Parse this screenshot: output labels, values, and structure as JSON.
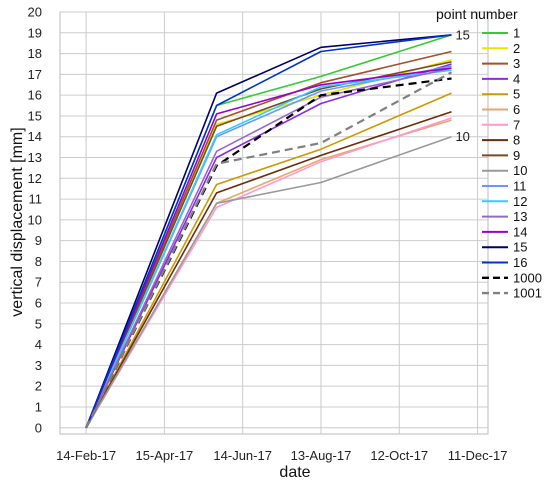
{
  "chart_data": {
    "type": "line",
    "xlabel": "date",
    "ylabel": "vertical displacement [mm]",
    "x_ticks": [
      "14-Feb-17",
      "15-Apr-17",
      "14-Jun-17",
      "13-Aug-17",
      "12-Oct-17",
      "11-Dec-17"
    ],
    "x_tick_values": [
      0,
      60,
      120,
      180,
      240,
      300
    ],
    "xlim": [
      -20,
      308
    ],
    "ylim": [
      -0.3,
      20
    ],
    "y_ticks": [
      0,
      1,
      2,
      3,
      4,
      5,
      6,
      7,
      8,
      9,
      10,
      11,
      12,
      13,
      14,
      15,
      16,
      17,
      18,
      19,
      20
    ],
    "x": [
      0,
      100,
      180,
      280
    ],
    "grid": true,
    "legend": {
      "title": "point number",
      "placement": "right"
    },
    "series": [
      {
        "name": "1",
        "color": "#33cc33",
        "dash": false,
        "values": [
          0,
          15.5,
          16.9,
          18.9
        ]
      },
      {
        "name": "2",
        "color": "#e6e600",
        "dash": false,
        "values": [
          0,
          14.6,
          16.0,
          17.7
        ]
      },
      {
        "name": "3",
        "color": "#a0522d",
        "dash": false,
        "values": [
          0,
          14.8,
          16.6,
          18.1
        ]
      },
      {
        "name": "4",
        "color": "#8a2be2",
        "dash": false,
        "values": [
          0,
          13.0,
          15.6,
          17.5
        ]
      },
      {
        "name": "5",
        "color": "#cc9900",
        "dash": false,
        "values": [
          0,
          11.7,
          13.4,
          16.1
        ]
      },
      {
        "name": "6",
        "color": "#e8a56e",
        "dash": false,
        "values": [
          0,
          10.8,
          12.9,
          14.8
        ]
      },
      {
        "name": "7",
        "color": "#ff99cc",
        "dash": false,
        "values": [
          0,
          10.6,
          12.8,
          14.9
        ]
      },
      {
        "name": "8",
        "color": "#6b2d0f",
        "dash": false,
        "values": [
          0,
          11.3,
          13.1,
          15.2
        ]
      },
      {
        "name": "9",
        "color": "#7a4a20",
        "dash": false,
        "values": [
          0,
          14.5,
          16.3,
          17.6
        ]
      },
      {
        "name": "10",
        "color": "#999999",
        "dash": false,
        "values": [
          0,
          10.8,
          11.8,
          14.0
        ]
      },
      {
        "name": "11",
        "color": "#6699ff",
        "dash": false,
        "values": [
          0,
          14.0,
          16.2,
          17.4
        ]
      },
      {
        "name": "12",
        "color": "#33ccff",
        "dash": false,
        "values": [
          0,
          14.1,
          16.4,
          17.2
        ]
      },
      {
        "name": "13",
        "color": "#9966cc",
        "dash": false,
        "values": [
          0,
          13.3,
          15.9,
          17.3
        ]
      },
      {
        "name": "14",
        "color": "#9900cc",
        "dash": false,
        "values": [
          0,
          15.1,
          16.5,
          17.3
        ]
      },
      {
        "name": "15",
        "color": "#000066",
        "dash": false,
        "values": [
          0,
          16.1,
          18.3,
          18.9
        ]
      },
      {
        "name": "16",
        "color": "#0033cc",
        "dash": false,
        "values": [
          0,
          15.5,
          18.1,
          18.9
        ]
      },
      {
        "name": "1000",
        "color": "#000000",
        "dash": true,
        "values": [
          0,
          12.6,
          16.0,
          16.8
        ]
      },
      {
        "name": "1001",
        "color": "#808080",
        "dash": true,
        "values": [
          0,
          12.7,
          13.7,
          17.1
        ]
      }
    ],
    "annotations": [
      {
        "text": "15",
        "series": "15"
      },
      {
        "text": "10",
        "series": "10"
      }
    ]
  }
}
